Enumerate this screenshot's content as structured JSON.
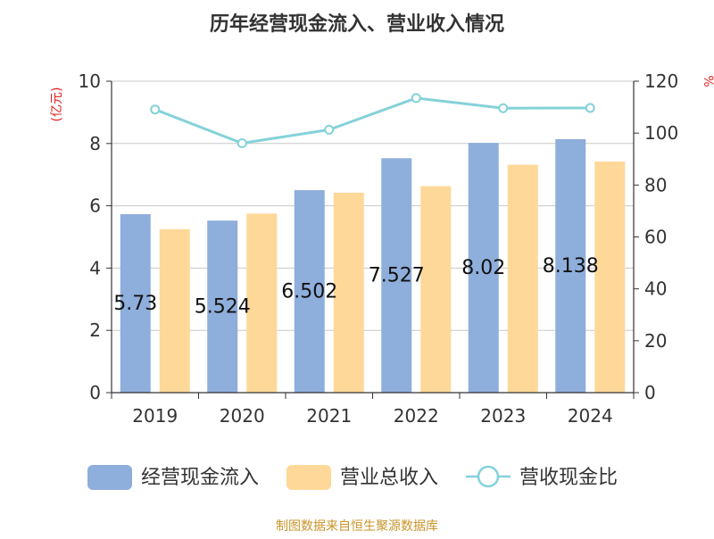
{
  "chart_data": {
    "type": "bar",
    "title": "历年经营现金流入、营业收入情况",
    "categories": [
      "2019",
      "2020",
      "2021",
      "2022",
      "2023",
      "2024"
    ],
    "y_left": {
      "unit_label": "(亿元)",
      "range": [
        0,
        10
      ],
      "ticks": [
        "0",
        "2",
        "4",
        "6",
        "8",
        "10"
      ]
    },
    "y_right": {
      "unit_label": "%",
      "range": [
        0,
        120
      ],
      "ticks": [
        "0",
        "20",
        "40",
        "60",
        "80",
        "100",
        "120"
      ]
    },
    "series": [
      {
        "name": "经营现金流入",
        "type": "bar",
        "axis": "left",
        "color": "#8eaedb",
        "values": [
          5.73,
          5.524,
          6.502,
          7.527,
          8.02,
          8.138
        ],
        "data_labels": [
          "5.73",
          "5.524",
          "6.502",
          "7.527",
          "8.02",
          "8.138"
        ]
      },
      {
        "name": "营业总收入",
        "type": "bar",
        "axis": "left",
        "color": "#fed898",
        "values": [
          5.25,
          5.75,
          6.42,
          6.63,
          7.32,
          7.42
        ]
      },
      {
        "name": "营收现金比",
        "type": "line",
        "axis": "right",
        "color": "#84d2d9",
        "values": [
          109.1,
          96.1,
          101.3,
          113.5,
          109.6,
          109.7
        ]
      }
    ],
    "legend_position": "bottom",
    "grid": true,
    "source": "制图数据来自恒生聚源数据库",
    "source_color": "#c8952a",
    "unit_color": "#e02020"
  }
}
